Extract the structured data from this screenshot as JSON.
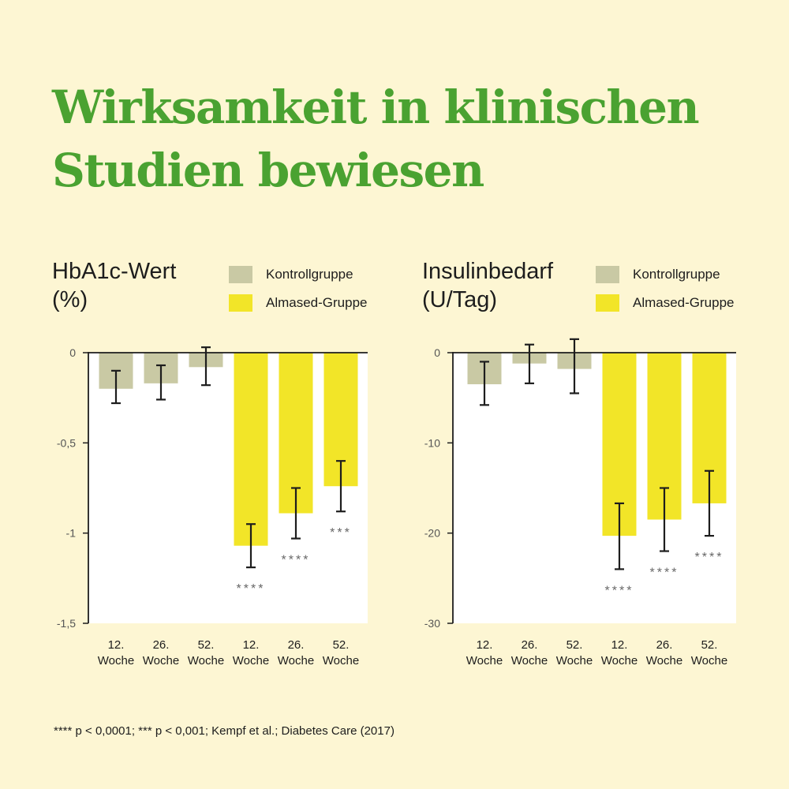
{
  "headline": {
    "line1": "Wirksamkeit in klinischen",
    "line2": "Studien bewiesen"
  },
  "colors": {
    "control": "#c9c9a4",
    "almased": "#f2e528",
    "title": "#4aa231",
    "background": "#fdf6d3"
  },
  "legend": [
    {
      "label": "Kontrollgruppe",
      "color": "#c9c9a4"
    },
    {
      "label": "Almased-Gruppe",
      "color": "#f2e528"
    }
  ],
  "chart_data": [
    {
      "type": "bar",
      "title_line1": "HbA1c-Wert",
      "title_line2": "(%)",
      "categories": [
        [
          "12.",
          "Woche"
        ],
        [
          "26.",
          "Woche"
        ],
        [
          "52.",
          "Woche"
        ],
        [
          "12.",
          "Woche"
        ],
        [
          "26.",
          "Woche"
        ],
        [
          "52.",
          "Woche"
        ]
      ],
      "groups": [
        "Kontrollgruppe",
        "Kontrollgruppe",
        "Kontrollgruppe",
        "Almased-Gruppe",
        "Almased-Gruppe",
        "Almased-Gruppe"
      ],
      "values": [
        -0.2,
        -0.17,
        -0.08,
        -1.07,
        -0.89,
        -0.74
      ],
      "error_low": [
        -0.28,
        -0.26,
        -0.18,
        -1.19,
        -1.03,
        -0.88
      ],
      "error_high": [
        -0.1,
        -0.07,
        0.03,
        -0.95,
        -0.75,
        -0.6
      ],
      "significance": [
        "",
        "",
        "",
        "****",
        "****",
        "***"
      ],
      "ylim": [
        -1.5,
        0
      ],
      "yticks": [
        0,
        -0.5,
        -1,
        -1.5
      ],
      "ytick_labels": [
        "0",
        "-0,5",
        "-1",
        "-1,5"
      ]
    },
    {
      "type": "bar",
      "title_line1": "Insulinbedarf",
      "title_line2": "(U/Tag)",
      "categories": [
        [
          "12.",
          "Woche"
        ],
        [
          "26.",
          "Woche"
        ],
        [
          "52.",
          "Woche"
        ],
        [
          "12.",
          "Woche"
        ],
        [
          "26.",
          "Woche"
        ],
        [
          "52.",
          "Woche"
        ]
      ],
      "groups": [
        "Kontrollgruppe",
        "Kontrollgruppe",
        "Kontrollgruppe",
        "Almased-Gruppe",
        "Almased-Gruppe",
        "Almased-Gruppe"
      ],
      "values": [
        -3.5,
        -1.2,
        -1.8,
        -20.3,
        -18.5,
        -16.7
      ],
      "error_low": [
        -5.8,
        -3.4,
        -4.5,
        -24,
        -22,
        -20.3
      ],
      "error_high": [
        -1,
        0.9,
        1.5,
        -16.7,
        -15,
        -13.1
      ],
      "significance": [
        "",
        "",
        "",
        "****",
        "****",
        "****"
      ],
      "ylim": [
        -30,
        0
      ],
      "yticks": [
        0,
        -10,
        -20,
        -30
      ],
      "ytick_labels": [
        "0",
        "-10",
        "-20",
        "-30"
      ]
    }
  ],
  "footnote": "**** p < 0,0001; *** p  < 0,001; Kempf et al.; Diabetes Care (2017)"
}
